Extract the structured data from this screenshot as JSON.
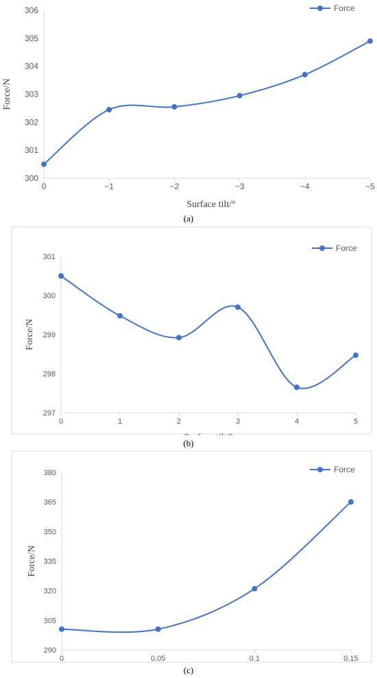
{
  "colors": {
    "series": "#4472c4",
    "axis": "#d9d9d9",
    "tick_text": "#595959",
    "frame": "#d9d9d9"
  },
  "chart_data": [
    {
      "type": "line",
      "smooth": true,
      "caption": "(a)",
      "ylabel": "Force/N",
      "xlabel": "Surface tilt/°",
      "x_tick_labels": [
        "0",
        "−1",
        "−2",
        "−3",
        "−4",
        "−5"
      ],
      "ylim": [
        300,
        306
      ],
      "y_ticks": [
        300,
        301,
        302,
        303,
        304,
        305,
        306
      ],
      "grid": false,
      "legend": "top-right",
      "series": [
        {
          "name": "Force",
          "x": [
            0,
            -1,
            -2,
            -3,
            -4,
            -5
          ],
          "values": [
            300.5,
            302.45,
            302.55,
            302.95,
            303.7,
            304.9
          ]
        }
      ]
    },
    {
      "type": "line",
      "smooth": true,
      "caption": "(b)",
      "ylabel": "Force/N",
      "xlabel": "Surface tilt/°",
      "x_tick_labels": [
        "0",
        "1",
        "2",
        "3",
        "4",
        "5"
      ],
      "ylim": [
        297,
        301
      ],
      "y_ticks": [
        297,
        298,
        299,
        300,
        301
      ],
      "grid": false,
      "legend": "top-right",
      "series": [
        {
          "name": "Force",
          "x": [
            0,
            1,
            2,
            3,
            4,
            5
          ],
          "values": [
            300.5,
            299.48,
            298.92,
            299.7,
            297.65,
            298.47
          ]
        }
      ]
    },
    {
      "type": "line",
      "smooth": true,
      "caption": "(c)",
      "ylabel": "Force/N",
      "xlabel": "Surface stretch/m",
      "x_tick_labels": [
        "0",
        "0.05",
        "0.1",
        "0.15"
      ],
      "ylim": [
        290,
        380
      ],
      "y_ticks": [
        290,
        305,
        320,
        335,
        350,
        365,
        380
      ],
      "grid": false,
      "legend": "top-right",
      "series": [
        {
          "name": "Force",
          "x": [
            0,
            0.05,
            0.1,
            0.15
          ],
          "values": [
            300.5,
            300.5,
            321,
            365
          ]
        }
      ]
    }
  ]
}
